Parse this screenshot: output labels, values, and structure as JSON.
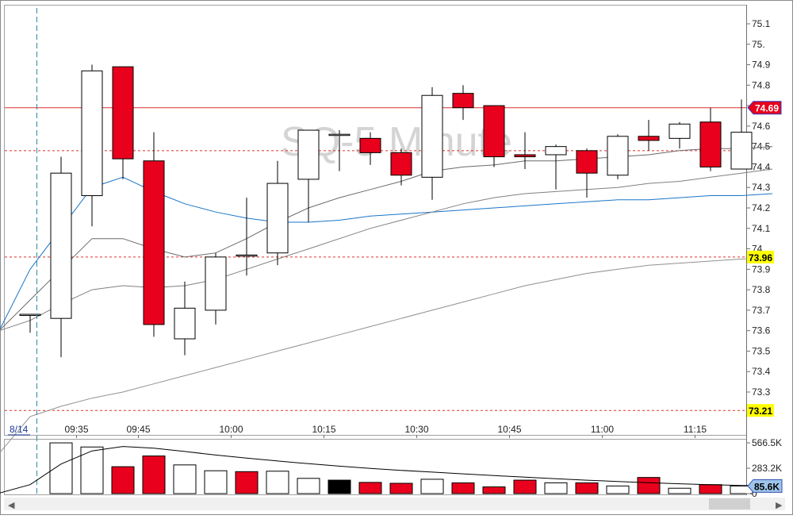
{
  "chart_data": {
    "type": "candlestick",
    "watermark": "SQ-5 Minute",
    "date_label": "8/14",
    "y_ticks": [
      "75.1",
      "75.",
      "74.9",
      "74.8",
      "74.7",
      "74.6",
      "74.5",
      "74.4",
      "74.3",
      "74.2",
      "74.1",
      "74.",
      "73.9",
      "73.8",
      "73.7",
      "73.6",
      "73.5",
      "73.4",
      "73.3"
    ],
    "y_tick_values": [
      75.1,
      75.0,
      74.9,
      74.8,
      74.7,
      74.6,
      74.5,
      74.4,
      74.3,
      74.2,
      74.1,
      74.0,
      73.9,
      73.8,
      73.7,
      73.6,
      73.5,
      73.4,
      73.3
    ],
    "x_labels": [
      {
        "label": "09:35",
        "bar": 1.5
      },
      {
        "label": "09:45",
        "bar": 3.5
      },
      {
        "label": "10:00",
        "bar": 6.5
      },
      {
        "label": "10:15",
        "bar": 9.5
      },
      {
        "label": "10:30",
        "bar": 12.5
      },
      {
        "label": "10:45",
        "bar": 15.5
      },
      {
        "label": "11:00",
        "bar": 18.5
      },
      {
        "label": "11:15",
        "bar": 21.5
      }
    ],
    "price_lines": [
      {
        "label": "74.69",
        "value": 74.69,
        "style": "solid",
        "color": "#e03030",
        "tag_bg": "#e8001c",
        "tag_fg": "#ffffff",
        "tag_border": "#3040c0"
      },
      {
        "label": "",
        "value": 74.48,
        "style": "dashed",
        "color": "#e03030"
      },
      {
        "label": "73.96",
        "value": 73.96,
        "style": "dashed",
        "color": "#e03030",
        "tag_bg": "#ffff00",
        "tag_fg": "#000000"
      },
      {
        "label": "73.21",
        "value": 73.21,
        "style": "dashed",
        "color": "#e03030",
        "tag_bg": "#ffff00",
        "tag_fg": "#000000"
      }
    ],
    "candles": [
      {
        "o": 73.68,
        "h": 73.68,
        "l": 73.59,
        "c": 73.68
      },
      {
        "o": 73.66,
        "h": 74.45,
        "l": 73.47,
        "c": 74.37
      },
      {
        "o": 74.26,
        "h": 74.9,
        "l": 74.11,
        "c": 74.87
      },
      {
        "o": 74.89,
        "h": 74.89,
        "l": 74.34,
        "c": 74.44
      },
      {
        "o": 74.43,
        "h": 74.57,
        "l": 73.57,
        "c": 73.63
      },
      {
        "o": 73.56,
        "h": 73.84,
        "l": 73.48,
        "c": 73.71
      },
      {
        "o": 73.7,
        "h": 73.98,
        "l": 73.63,
        "c": 73.96
      },
      {
        "o": 73.97,
        "h": 74.25,
        "l": 73.87,
        "c": 73.97
      },
      {
        "o": 73.98,
        "h": 74.43,
        "l": 73.92,
        "c": 74.32
      },
      {
        "o": 74.34,
        "h": 74.58,
        "l": 74.13,
        "c": 74.58
      },
      {
        "o": 74.56,
        "h": 74.58,
        "l": 74.38,
        "c": 74.56
      },
      {
        "o": 74.54,
        "h": 74.57,
        "l": 74.41,
        "c": 74.47
      },
      {
        "o": 74.47,
        "h": 74.49,
        "l": 74.31,
        "c": 74.36
      },
      {
        "o": 74.35,
        "h": 74.79,
        "l": 74.24,
        "c": 74.75
      },
      {
        "o": 74.76,
        "h": 74.8,
        "l": 74.63,
        "c": 74.69
      },
      {
        "o": 74.7,
        "h": 74.7,
        "l": 74.4,
        "c": 74.45
      },
      {
        "o": 74.46,
        "h": 74.57,
        "l": 74.39,
        "c": 74.45
      },
      {
        "o": 74.46,
        "h": 74.51,
        "l": 74.29,
        "c": 74.5
      },
      {
        "o": 74.48,
        "h": 74.49,
        "l": 74.25,
        "c": 74.37
      },
      {
        "o": 74.36,
        "h": 74.56,
        "l": 74.34,
        "c": 74.55
      },
      {
        "o": 74.55,
        "h": 74.63,
        "l": 74.48,
        "c": 74.53
      },
      {
        "o": 74.54,
        "h": 74.62,
        "l": 74.49,
        "c": 74.61
      },
      {
        "o": 74.62,
        "h": 74.69,
        "l": 74.38,
        "c": 74.4
      },
      {
        "o": 74.39,
        "h": 74.73,
        "l": 74.39,
        "c": 74.57
      }
    ],
    "moving_averages": [
      {
        "color": "#1a75c8",
        "values": [
          73.6,
          73.9,
          74.1,
          74.3,
          74.35,
          74.28,
          74.22,
          74.18,
          74.15,
          74.13,
          74.13,
          74.14,
          74.16,
          74.17,
          74.18,
          74.19,
          74.2,
          74.21,
          74.22,
          74.23,
          74.24,
          74.24,
          74.25,
          74.26,
          74.26,
          74.27
        ]
      },
      {
        "color": "#6a6a6a",
        "values": [
          73.6,
          73.75,
          73.9,
          74.05,
          74.05,
          74.0,
          73.96,
          73.98,
          74.05,
          74.13,
          74.2,
          74.25,
          74.29,
          74.33,
          74.38,
          74.4,
          74.41,
          74.43,
          74.43,
          74.44,
          74.45,
          74.46,
          74.48,
          74.49,
          74.49,
          74.5
        ]
      },
      {
        "color": "#808080",
        "values": [
          73.6,
          73.65,
          73.73,
          73.8,
          73.82,
          73.81,
          73.82,
          73.85,
          73.9,
          73.95,
          74.0,
          74.05,
          74.1,
          74.14,
          74.18,
          74.22,
          74.25,
          74.27,
          74.28,
          74.29,
          74.3,
          74.32,
          74.33,
          74.35,
          74.37,
          74.39
        ]
      },
      {
        "color": "#909090",
        "values": [
          73.0,
          73.18,
          73.23,
          73.27,
          73.3,
          73.34,
          73.38,
          73.42,
          73.46,
          73.5,
          73.54,
          73.58,
          73.62,
          73.66,
          73.7,
          73.74,
          73.78,
          73.82,
          73.85,
          73.88,
          73.9,
          73.92,
          73.93,
          73.94,
          73.95,
          73.96
        ]
      }
    ],
    "ma_start_bar": -1,
    "volume_ticks": [
      "566.5K",
      "283.2K",
      "0"
    ],
    "volume_tick_values": [
      566.5,
      283.2,
      0
    ],
    "volume_tag": "85.6K",
    "volume_tag_value": 85.6,
    "volume_unit": "K",
    "volumes": [
      {
        "v": 0,
        "color": "none"
      },
      {
        "v": 566,
        "color": "white"
      },
      {
        "v": 520,
        "color": "white"
      },
      {
        "v": 300,
        "color": "red"
      },
      {
        "v": 420,
        "color": "red"
      },
      {
        "v": 320,
        "color": "white"
      },
      {
        "v": 255,
        "color": "white"
      },
      {
        "v": 245,
        "color": "red"
      },
      {
        "v": 250,
        "color": "white"
      },
      {
        "v": 170,
        "color": "white"
      },
      {
        "v": 150,
        "color": "black"
      },
      {
        "v": 125,
        "color": "red"
      },
      {
        "v": 115,
        "color": "red"
      },
      {
        "v": 160,
        "color": "white"
      },
      {
        "v": 120,
        "color": "red"
      },
      {
        "v": 75,
        "color": "red"
      },
      {
        "v": 150,
        "color": "red"
      },
      {
        "v": 120,
        "color": "white"
      },
      {
        "v": 120,
        "color": "red"
      },
      {
        "v": 85,
        "color": "white"
      },
      {
        "v": 180,
        "color": "red"
      },
      {
        "v": 60,
        "color": "white"
      },
      {
        "v": 100,
        "color": "red"
      },
      {
        "v": 85,
        "color": "white"
      }
    ],
    "volume_ma": [
      5,
      100,
      330,
      476,
      526,
      506,
      470,
      430,
      396,
      364,
      334,
      306,
      281,
      259,
      240,
      220,
      201,
      183,
      166,
      150,
      135,
      122,
      110,
      99,
      90,
      86
    ]
  }
}
